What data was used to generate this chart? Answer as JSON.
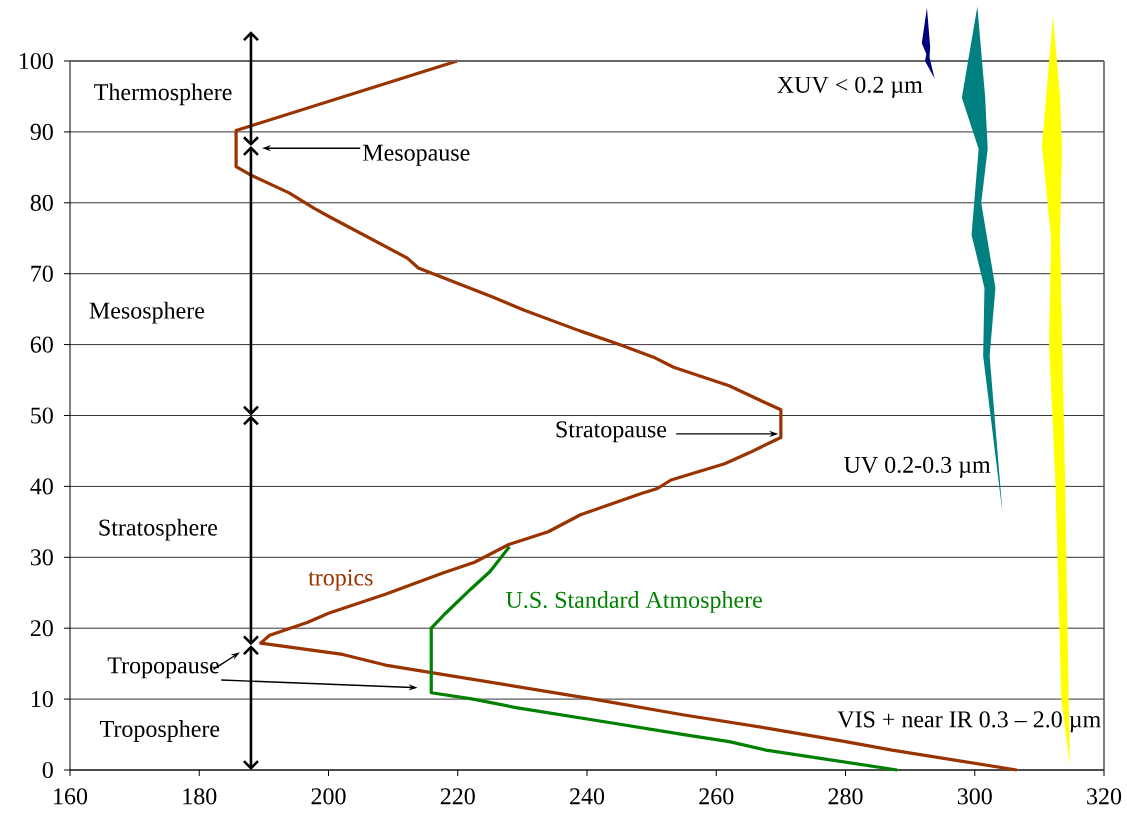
{
  "chart_data": {
    "type": "line",
    "xlim": [
      160,
      320
    ],
    "xticks": [
      160,
      180,
      200,
      220,
      240,
      260,
      280,
      300,
      320
    ],
    "ylim": [
      0,
      100
    ],
    "yticks": [
      0,
      10,
      20,
      30,
      40,
      50,
      60,
      70,
      80,
      90,
      100
    ],
    "grid": "y",
    "marker": "none",
    "line_style": "solid",
    "series": [
      {
        "name": "tropics",
        "color": "#993300",
        "x": [
          306.5,
          287.2,
          280,
          268.5,
          254.8,
          241,
          208.8,
          202.2,
          189.5,
          190.9,
          196.7,
          200,
          208.8,
          217.7,
          222.6,
          227.9,
          234,
          239,
          248.4,
          250.9,
          253,
          261.3,
          265,
          270,
          270,
          267.1,
          262,
          253.4,
          250.6,
          244.8,
          239,
          230.4,
          225.4,
          213.9,
          212.2,
          200,
          197.8,
          193.9,
          187.8,
          185.7,
          185.7,
          187.8,
          219.9
        ],
        "values": [
          0,
          2.8,
          4,
          5.8,
          7.8,
          10,
          14.8,
          16.3,
          17.9,
          19,
          20.8,
          22.1,
          24.8,
          27.8,
          29.3,
          31.8,
          33.6,
          36,
          39,
          39.7,
          40.9,
          43.2,
          44.7,
          46.9,
          50.8,
          52,
          54.2,
          56.8,
          58.1,
          60.1,
          61.9,
          64.8,
          66.7,
          70.8,
          72.2,
          78.1,
          79.2,
          81.4,
          84,
          85.1,
          90.2,
          90.8,
          100
        ]
      },
      {
        "name": "U.S. Standard Atmosphere",
        "color": "#008000",
        "x": [
          288,
          267.7,
          262,
          255,
          242.7,
          229,
          222.4,
          215.9,
          215.9,
          218,
          222,
          225,
          228
        ],
        "values": [
          0,
          2.8,
          4,
          5,
          6.8,
          8.8,
          10,
          10.9,
          20,
          22,
          25.5,
          28,
          31.5
        ]
      }
    ],
    "annotations": [
      "Thermosphere",
      "Mesosphere",
      "Stratosphere",
      "Troposphere",
      "Mesopause",
      "Stratopause",
      "Tropopause",
      "XUV   < 0.2 µm",
      "UV   0.2-0.3 µm",
      "VIS + near IR  0.3 – 2.0 µm"
    ]
  }
}
